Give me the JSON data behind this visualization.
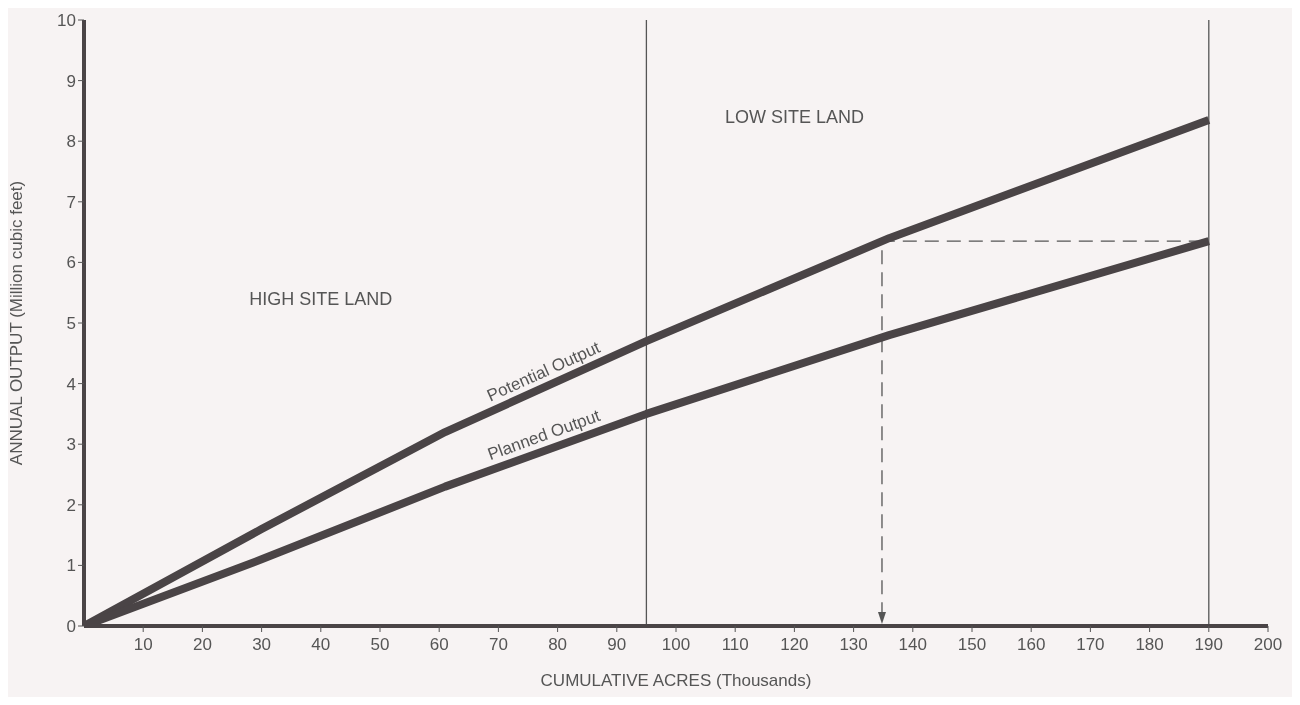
{
  "chart_data": {
    "type": "line",
    "xlabel": "CUMULATIVE ACRES (Thousands)",
    "ylabel": "ANNUAL OUTPUT (Million cubic feet)",
    "xlim": [
      0,
      200
    ],
    "xticks": [
      10,
      20,
      30,
      40,
      50,
      60,
      70,
      80,
      90,
      100,
      110,
      120,
      130,
      140,
      150,
      160,
      170,
      180,
      190,
      200
    ],
    "ylim": [
      0,
      10
    ],
    "yticks": [
      0,
      1,
      2,
      3,
      4,
      5,
      6,
      7,
      8,
      9,
      10
    ],
    "annotations": [
      "HIGH SITE LAND",
      "LOW SITE LAND"
    ],
    "series": [
      {
        "name": "Potential Output",
        "color": "#4a4446",
        "x": [
          0,
          30,
          61,
          95,
          136,
          190
        ],
        "values": [
          0,
          1.6,
          3.2,
          4.7,
          6.4,
          8.35
        ]
      },
      {
        "name": "Planned Output",
        "color": "#4a4446",
        "x": [
          0,
          30,
          61,
          95,
          136,
          190
        ],
        "values": [
          0,
          1.1,
          2.3,
          3.5,
          4.8,
          6.35
        ]
      }
    ],
    "ref_lines": [
      {
        "axis": "x",
        "value": 95,
        "color": "#555555"
      },
      {
        "axis": "x",
        "value": 190,
        "color": "#555555"
      }
    ]
  }
}
